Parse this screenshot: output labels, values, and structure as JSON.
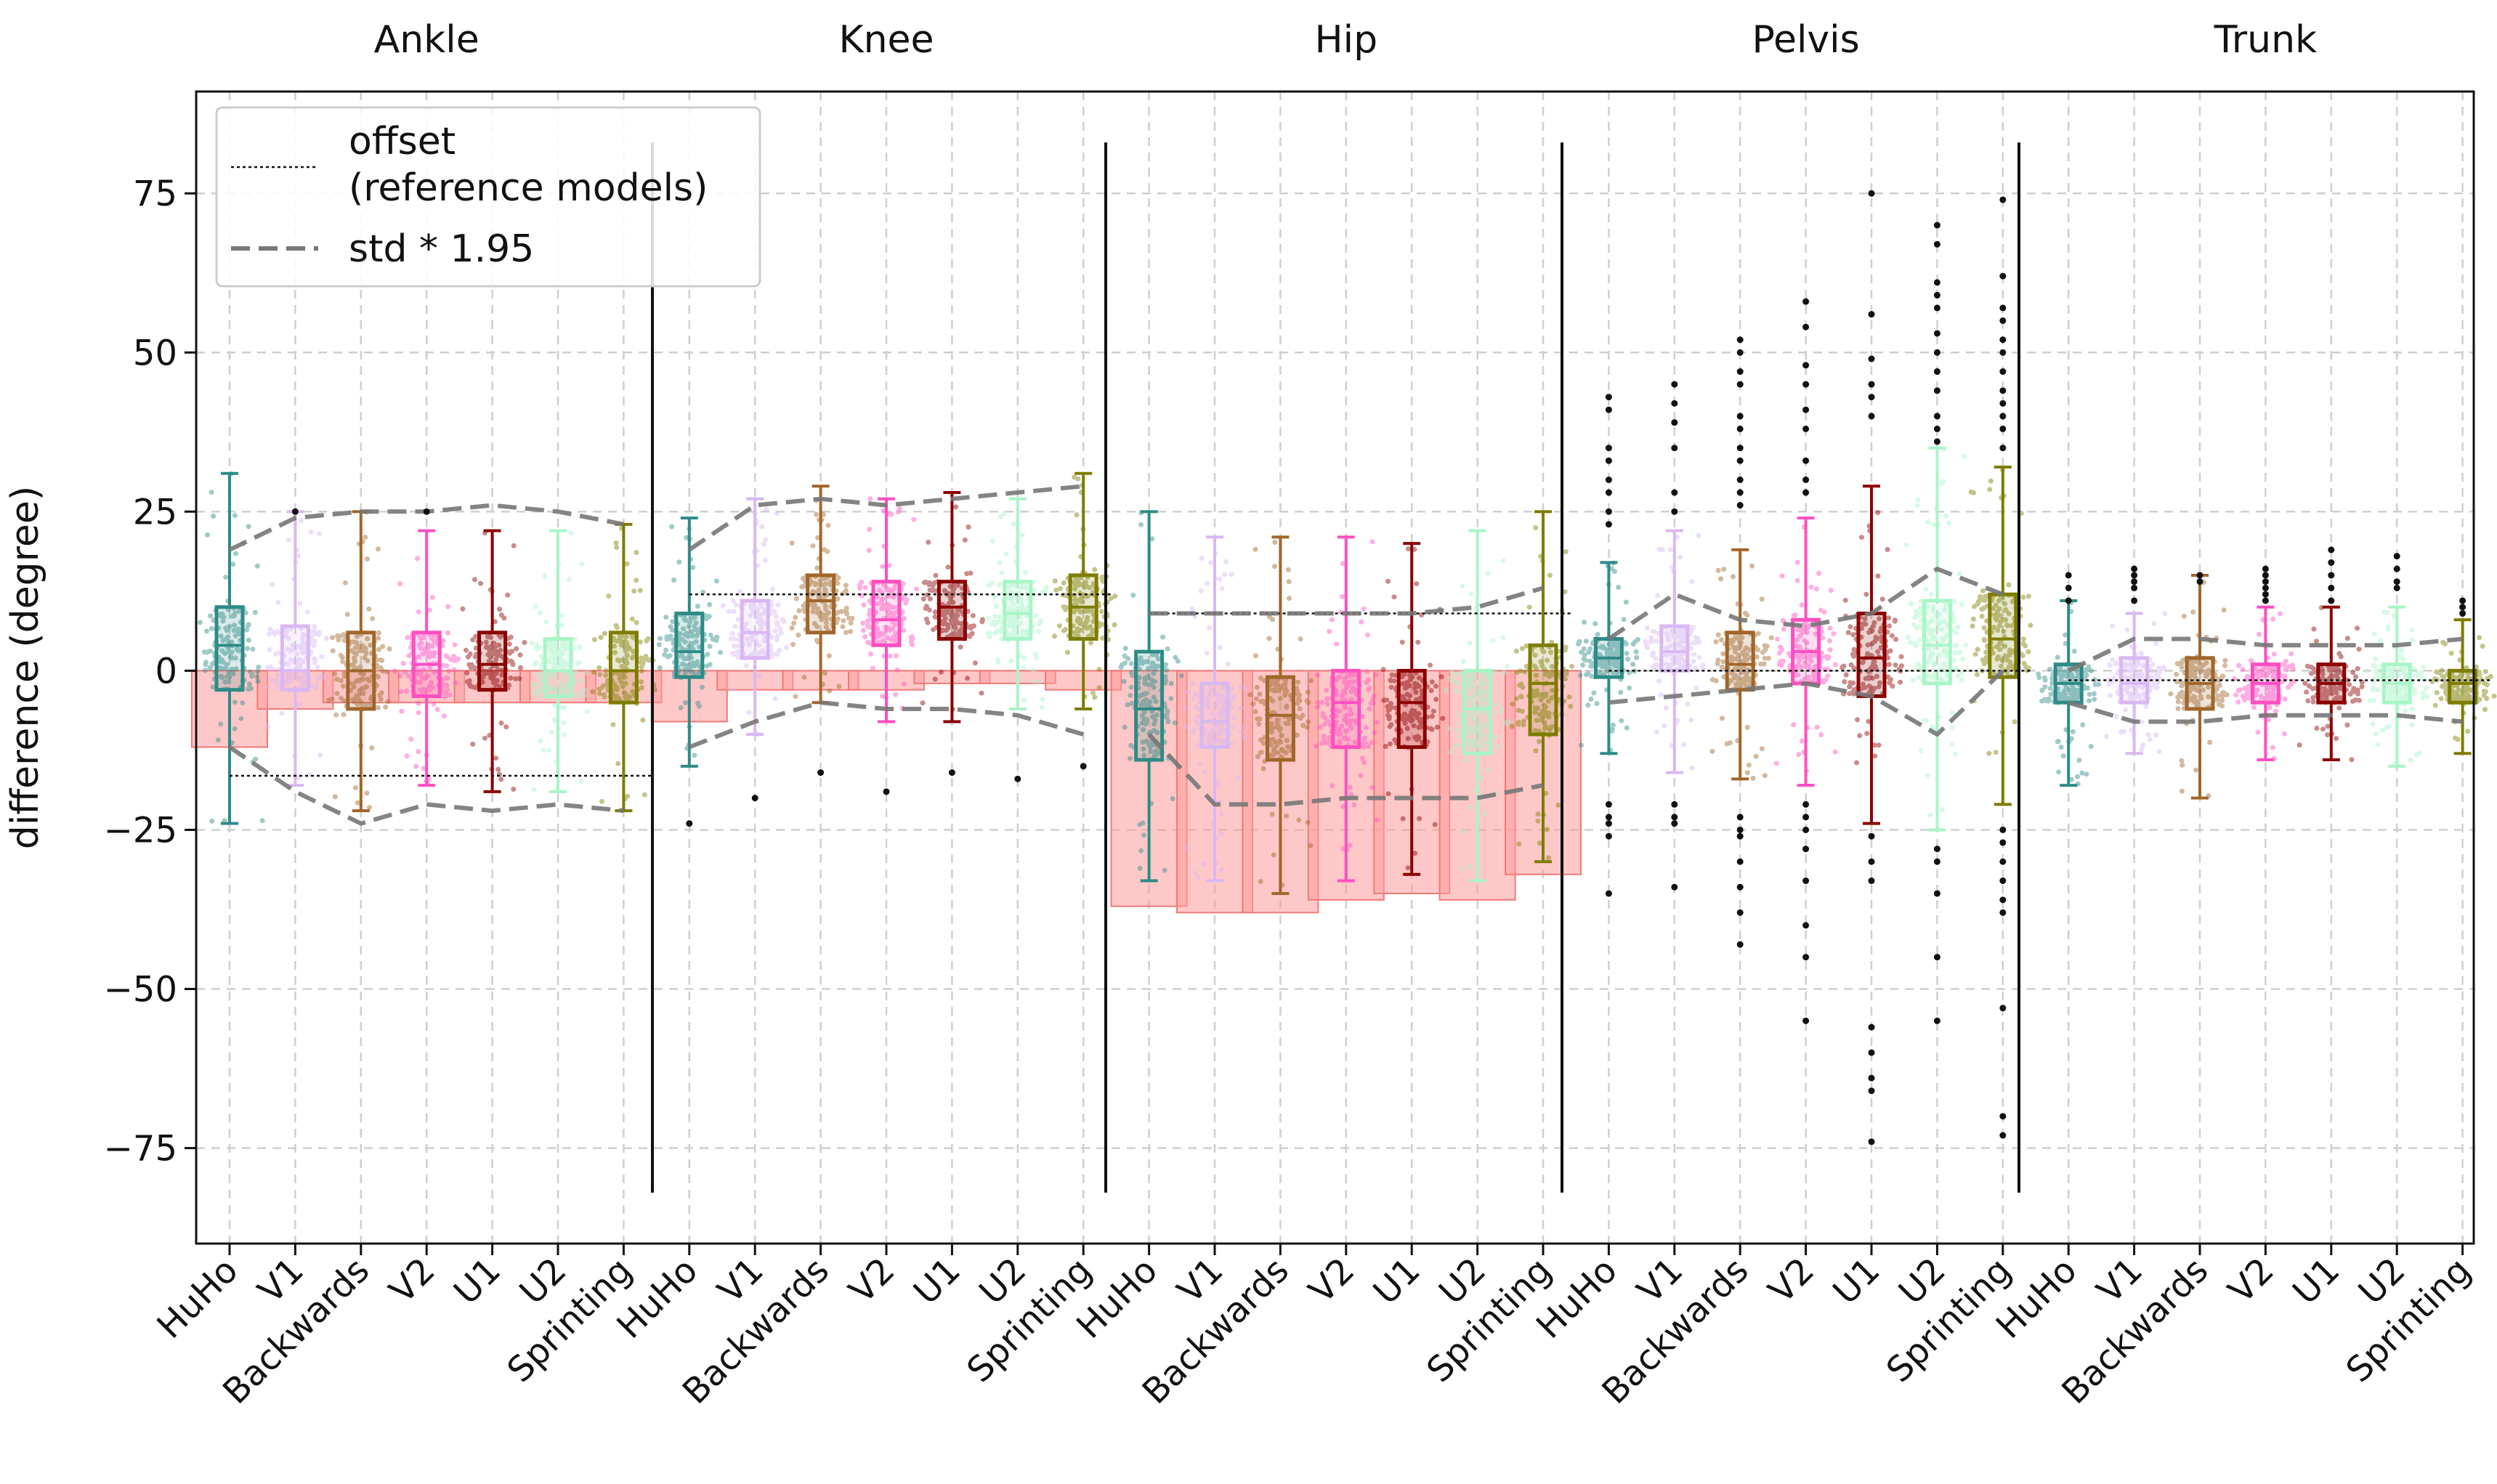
{
  "chart_data": {
    "type": "box",
    "ylabel": "difference (degree)",
    "ylim": [
      -90,
      91
    ],
    "yticks": [
      75,
      50,
      25,
      0,
      -25,
      -50,
      -75
    ],
    "ytick_labels": [
      "75",
      "50",
      "25",
      "0",
      "−25",
      "−50",
      "−75"
    ],
    "grid": true,
    "groups": [
      "Ankle",
      "Knee",
      "Hip",
      "Pelvis",
      "Trunk"
    ],
    "categories": [
      "HuHo",
      "V1",
      "Backwards",
      "V2",
      "U1",
      "U2",
      "Sprinting"
    ],
    "series_colors": {
      "HuHo": "#2e8b86",
      "V1": "#d9b8f2",
      "Backwards": "#a0662a",
      "V2": "#ff4fc0",
      "U1": "#8b0000",
      "U2": "#a8f5c8",
      "Sprinting": "#7d7d00"
    },
    "offset_color": "#ff9a9a",
    "legend": {
      "position": "top-left",
      "entries": [
        {
          "label": "offset",
          "label2": "(reference models)",
          "style": "dotted"
        },
        {
          "label": "std * 1.95",
          "style": "dashed"
        }
      ]
    },
    "offset_values": [
      [
        -12,
        -6,
        -5,
        -5,
        -5,
        -5,
        -5
      ],
      [
        -8,
        -3,
        -3,
        -3,
        -2,
        -2,
        -3
      ],
      [
        -37,
        -38,
        -38,
        -36,
        -35,
        -36,
        -32
      ],
      [
        0,
        0,
        0,
        0,
        0,
        0,
        0
      ],
      [
        0,
        0,
        0,
        0,
        0,
        0,
        0
      ]
    ],
    "reference_offset": [
      -16.5,
      12,
      9,
      0,
      -1.5
    ],
    "std_upper": [
      [
        19,
        24,
        25,
        25,
        26,
        25,
        23
      ],
      [
        19,
        26,
        27,
        26,
        27,
        28,
        29
      ],
      [
        9,
        9,
        9,
        9,
        9,
        10,
        13
      ],
      [
        5,
        12,
        8,
        7,
        9,
        16,
        12
      ],
      [
        0,
        5,
        5,
        4,
        4,
        4,
        5
      ]
    ],
    "std_lower": [
      [
        -12,
        -19,
        -24,
        -21,
        -22,
        -21,
        -22
      ],
      [
        -12,
        -8,
        -5,
        -6,
        -6,
        -7,
        -10
      ],
      [
        -10,
        -21,
        -21,
        -20,
        -20,
        -20,
        -18
      ],
      [
        -5,
        -4,
        -3,
        -2,
        -4,
        -10,
        0
      ],
      [
        -5,
        -8,
        -8,
        -7,
        -7,
        -7,
        -8
      ]
    ],
    "boxes": [
      [
        {
          "min": -24,
          "q1": -3,
          "median": 4,
          "q3": 10,
          "max": 31
        },
        {
          "min": -18,
          "q1": -3,
          "median": 0,
          "q3": 7,
          "max": 25
        },
        {
          "min": -22,
          "q1": -6,
          "median": 0,
          "q3": 6,
          "max": 25
        },
        {
          "min": -18,
          "q1": -4,
          "median": 1,
          "q3": 6,
          "max": 22
        },
        {
          "min": -19,
          "q1": -3,
          "median": 1,
          "q3": 6,
          "max": 22
        },
        {
          "min": -19,
          "q1": -4,
          "median": 0,
          "q3": 5,
          "max": 22
        },
        {
          "min": -22,
          "q1": -5,
          "median": 0,
          "q3": 6,
          "max": 23
        }
      ],
      [
        {
          "min": -15,
          "q1": -1,
          "median": 3,
          "q3": 9,
          "max": 24
        },
        {
          "min": -10,
          "q1": 2,
          "median": 6,
          "q3": 11,
          "max": 27
        },
        {
          "min": -5,
          "q1": 6,
          "median": 11,
          "q3": 15,
          "max": 29
        },
        {
          "min": -8,
          "q1": 4,
          "median": 8,
          "q3": 14,
          "max": 27
        },
        {
          "min": -8,
          "q1": 5,
          "median": 10,
          "q3": 14,
          "max": 28
        },
        {
          "min": -6,
          "q1": 5,
          "median": 9,
          "q3": 14,
          "max": 27
        },
        {
          "min": -6,
          "q1": 5,
          "median": 10,
          "q3": 15,
          "max": 31
        }
      ],
      [
        {
          "min": -33,
          "q1": -14,
          "median": -6,
          "q3": 3,
          "max": 25
        },
        {
          "min": -33,
          "q1": -12,
          "median": -8,
          "q3": -2,
          "max": 21
        },
        {
          "min": -35,
          "q1": -14,
          "median": -7,
          "q3": -1,
          "max": 21
        },
        {
          "min": -33,
          "q1": -12,
          "median": -5,
          "q3": 0,
          "max": 21
        },
        {
          "min": -32,
          "q1": -12,
          "median": -5,
          "q3": 0,
          "max": 20
        },
        {
          "min": -33,
          "q1": -13,
          "median": -6,
          "q3": 0,
          "max": 22
        },
        {
          "min": -30,
          "q1": -10,
          "median": -2,
          "q3": 4,
          "max": 25
        }
      ],
      [
        {
          "min": -13,
          "q1": -1,
          "median": 2,
          "q3": 5,
          "max": 17
        },
        {
          "min": -16,
          "q1": 0,
          "median": 3,
          "q3": 7,
          "max": 22
        },
        {
          "min": -17,
          "q1": -3,
          "median": 1,
          "q3": 6,
          "max": 19
        },
        {
          "min": -18,
          "q1": -2,
          "median": 3,
          "q3": 8,
          "max": 24
        },
        {
          "min": -24,
          "q1": -4,
          "median": 2,
          "q3": 9,
          "max": 29
        },
        {
          "min": -25,
          "q1": -2,
          "median": 4,
          "q3": 11,
          "max": 35
        },
        {
          "min": -21,
          "q1": -1,
          "median": 5,
          "q3": 12,
          "max": 32
        }
      ],
      [
        {
          "min": -18,
          "q1": -5,
          "median": -2,
          "q3": 1,
          "max": 11
        },
        {
          "min": -13,
          "q1": -5,
          "median": -2,
          "q3": 2,
          "max": 9
        },
        {
          "min": -20,
          "q1": -6,
          "median": -2,
          "q3": 2,
          "max": 15
        },
        {
          "min": -14,
          "q1": -5,
          "median": -2,
          "q3": 1,
          "max": 10
        },
        {
          "min": -14,
          "q1": -5,
          "median": -2,
          "q3": 1,
          "max": 10
        },
        {
          "min": -15,
          "q1": -5,
          "median": -2,
          "q3": 1,
          "max": 10
        },
        {
          "min": -13,
          "q1": -5,
          "median": -2,
          "q3": 0,
          "max": 8
        }
      ]
    ],
    "outliers": [
      [
        [],
        [
          25
        ],
        [],
        [
          25
        ],
        [],
        [],
        []
      ],
      [
        [
          -24
        ],
        [
          -20
        ],
        [
          -16
        ],
        [
          -19
        ],
        [
          -16
        ],
        [
          -17
        ],
        [
          -15
        ]
      ],
      [
        [],
        [],
        [],
        [],
        [],
        [],
        []
      ],
      [
        [
          43,
          41,
          35,
          33,
          30,
          28,
          25,
          23,
          -21,
          -23,
          -24,
          -26,
          -35
        ],
        [
          45,
          42,
          39,
          35,
          28,
          25,
          -21,
          -23,
          -24,
          -34
        ],
        [
          52,
          50,
          47,
          45,
          40,
          38,
          35,
          33,
          30,
          28,
          26,
          -23,
          -25,
          -26,
          -30,
          -34,
          -38,
          -43
        ],
        [
          58,
          54,
          48,
          45,
          41,
          38,
          33,
          30,
          28,
          -21,
          -23,
          -25,
          -28,
          -33,
          -40,
          -45,
          -55
        ],
        [
          75,
          56,
          49,
          45,
          43,
          40,
          -26,
          -30,
          -33,
          -56,
          -60,
          -64,
          -66,
          -74
        ],
        [
          70,
          67,
          61,
          59,
          57,
          53,
          50,
          47,
          44,
          40,
          38,
          36,
          -28,
          -30,
          -35,
          -45,
          -55
        ],
        [
          74,
          62,
          57,
          55,
          52,
          50,
          47,
          44,
          42,
          40,
          38,
          35,
          -25,
          -27,
          -30,
          -33,
          -36,
          -38,
          -53,
          -70,
          -73
        ]
      ],
      [
        [
          15,
          13,
          11
        ],
        [
          16,
          15,
          14,
          13,
          11
        ],
        [
          15,
          14
        ],
        [
          16,
          15,
          14,
          13,
          12,
          11
        ],
        [
          19,
          17,
          15,
          13,
          11
        ],
        [
          18,
          16,
          14,
          13
        ],
        [
          11,
          10,
          9
        ]
      ]
    ]
  }
}
